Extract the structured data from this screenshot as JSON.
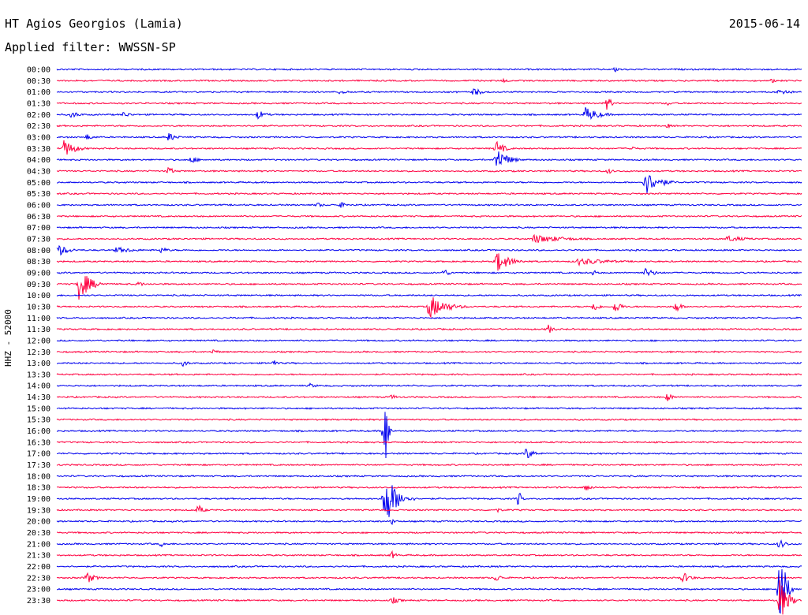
{
  "header": {
    "station_title": "HT Agios Georgios (Lamia)",
    "date": "2015-06-14",
    "filter": "Applied filter: WWSSN-SP",
    "channel": "HHZ - 52000"
  },
  "colors": {
    "trace_a": "#0000ee",
    "trace_b": "#ff0040",
    "text": "#000000"
  },
  "chart_data": {
    "type": "helicorder",
    "rows": [
      "00:00",
      "00:30",
      "01:00",
      "01:30",
      "02:00",
      "02:30",
      "03:00",
      "03:30",
      "04:00",
      "04:30",
      "05:00",
      "05:30",
      "06:00",
      "06:30",
      "07:00",
      "07:30",
      "08:00",
      "08:30",
      "09:00",
      "09:30",
      "10:00",
      "10:30",
      "11:00",
      "11:30",
      "12:00",
      "12:30",
      "13:00",
      "13:30",
      "14:00",
      "14:30",
      "15:00",
      "15:30",
      "16:00",
      "16:30",
      "17:00",
      "17:30",
      "18:00",
      "18:30",
      "19:00",
      "19:30",
      "20:00",
      "20:30",
      "21:00",
      "21:30",
      "22:00",
      "22:30",
      "23:00",
      "23:30"
    ],
    "events": [
      {
        "row": 0,
        "x": 0.75,
        "amp": 4,
        "dur": 0.02
      },
      {
        "row": 1,
        "x": 0.6,
        "amp": 3,
        "dur": 0.02
      },
      {
        "row": 1,
        "x": 0.96,
        "amp": 3,
        "dur": 0.02
      },
      {
        "row": 2,
        "x": 0.38,
        "amp": 3,
        "dur": 0.04
      },
      {
        "row": 2,
        "x": 0.56,
        "amp": 6,
        "dur": 0.03
      },
      {
        "row": 2,
        "x": 0.97,
        "amp": 7,
        "dur": 0.03
      },
      {
        "row": 3,
        "x": 0.74,
        "amp": 14,
        "dur": 0.01
      },
      {
        "row": 3,
        "x": 0.82,
        "amp": 3,
        "dur": 0.02
      },
      {
        "row": 4,
        "x": 0.02,
        "amp": 5,
        "dur": 0.03
      },
      {
        "row": 4,
        "x": 0.09,
        "amp": 4,
        "dur": 0.03
      },
      {
        "row": 4,
        "x": 0.27,
        "amp": 6,
        "dur": 0.03
      },
      {
        "row": 4,
        "x": 0.71,
        "amp": 10,
        "dur": 0.05
      },
      {
        "row": 5,
        "x": 0.82,
        "amp": 3,
        "dur": 0.02
      },
      {
        "row": 6,
        "x": 0.04,
        "amp": 4,
        "dur": 0.03
      },
      {
        "row": 6,
        "x": 0.15,
        "amp": 6,
        "dur": 0.03
      },
      {
        "row": 7,
        "x": 0.01,
        "amp": 12,
        "dur": 0.04
      },
      {
        "row": 7,
        "x": 0.59,
        "amp": 10,
        "dur": 0.03
      },
      {
        "row": 7,
        "x": 0.77,
        "amp": 4,
        "dur": 0.02
      },
      {
        "row": 8,
        "x": 0.18,
        "amp": 5,
        "dur": 0.03
      },
      {
        "row": 8,
        "x": 0.59,
        "amp": 16,
        "dur": 0.04
      },
      {
        "row": 9,
        "x": 0.15,
        "amp": 6,
        "dur": 0.02
      },
      {
        "row": 9,
        "x": 0.74,
        "amp": 4,
        "dur": 0.02
      },
      {
        "row": 10,
        "x": 0.79,
        "amp": 16,
        "dur": 0.05
      },
      {
        "row": 12,
        "x": 0.35,
        "amp": 4,
        "dur": 0.02
      },
      {
        "row": 12,
        "x": 0.38,
        "amp": 4,
        "dur": 0.03
      },
      {
        "row": 15,
        "x": 0.64,
        "amp": 6,
        "dur": 0.12
      },
      {
        "row": 15,
        "x": 0.9,
        "amp": 4,
        "dur": 0.08
      },
      {
        "row": 16,
        "x": 0.0,
        "amp": 9,
        "dur": 0.04
      },
      {
        "row": 16,
        "x": 0.08,
        "amp": 4,
        "dur": 0.08
      },
      {
        "row": 16,
        "x": 0.14,
        "amp": 4,
        "dur": 0.03
      },
      {
        "row": 17,
        "x": 0.59,
        "amp": 14,
        "dur": 0.05
      },
      {
        "row": 17,
        "x": 0.7,
        "amp": 5,
        "dur": 0.12
      },
      {
        "row": 18,
        "x": 0.52,
        "amp": 6,
        "dur": 0.02
      },
      {
        "row": 18,
        "x": 0.72,
        "amp": 4,
        "dur": 0.02
      },
      {
        "row": 18,
        "x": 0.79,
        "amp": 6,
        "dur": 0.04
      },
      {
        "row": 19,
        "x": 0.03,
        "amp": 22,
        "dur": 0.04
      },
      {
        "row": 19,
        "x": 0.11,
        "amp": 4,
        "dur": 0.02
      },
      {
        "row": 21,
        "x": 0.5,
        "amp": 16,
        "dur": 0.06
      },
      {
        "row": 21,
        "x": 0.72,
        "amp": 8,
        "dur": 0.02
      },
      {
        "row": 21,
        "x": 0.75,
        "amp": 10,
        "dur": 0.02
      },
      {
        "row": 21,
        "x": 0.83,
        "amp": 9,
        "dur": 0.02
      },
      {
        "row": 23,
        "x": 0.66,
        "amp": 6,
        "dur": 0.02
      },
      {
        "row": 25,
        "x": 0.21,
        "amp": 4,
        "dur": 0.02
      },
      {
        "row": 26,
        "x": 0.17,
        "amp": 5,
        "dur": 0.02
      },
      {
        "row": 26,
        "x": 0.29,
        "amp": 5,
        "dur": 0.02
      },
      {
        "row": 28,
        "x": 0.34,
        "amp": 3,
        "dur": 0.03
      },
      {
        "row": 29,
        "x": 0.45,
        "amp": 4,
        "dur": 0.02
      },
      {
        "row": 29,
        "x": 0.82,
        "amp": 6,
        "dur": 0.02
      },
      {
        "row": 32,
        "x": 0.44,
        "amp": 70,
        "dur": 0.01
      },
      {
        "row": 34,
        "x": 0.63,
        "amp": 8,
        "dur": 0.03
      },
      {
        "row": 37,
        "x": 0.71,
        "amp": 6,
        "dur": 0.02
      },
      {
        "row": 38,
        "x": 0.44,
        "amp": 40,
        "dur": 0.04
      },
      {
        "row": 38,
        "x": 0.62,
        "amp": 12,
        "dur": 0.01
      },
      {
        "row": 39,
        "x": 0.19,
        "amp": 7,
        "dur": 0.02
      },
      {
        "row": 39,
        "x": 0.59,
        "amp": 4,
        "dur": 0.02
      },
      {
        "row": 40,
        "x": 0.45,
        "amp": 4,
        "dur": 0.02
      },
      {
        "row": 42,
        "x": 0.14,
        "amp": 4,
        "dur": 0.02
      },
      {
        "row": 42,
        "x": 0.97,
        "amp": 6,
        "dur": 0.03
      },
      {
        "row": 43,
        "x": 0.45,
        "amp": 5,
        "dur": 0.02
      },
      {
        "row": 45,
        "x": 0.04,
        "amp": 8,
        "dur": 0.03
      },
      {
        "row": 45,
        "x": 0.59,
        "amp": 6,
        "dur": 0.02
      },
      {
        "row": 45,
        "x": 0.84,
        "amp": 8,
        "dur": 0.03
      },
      {
        "row": 46,
        "x": 0.97,
        "amp": 70,
        "dur": 0.02
      },
      {
        "row": 47,
        "x": 0.45,
        "amp": 5,
        "dur": 0.03
      },
      {
        "row": 47,
        "x": 0.97,
        "amp": 30,
        "dur": 0.03
      }
    ]
  }
}
